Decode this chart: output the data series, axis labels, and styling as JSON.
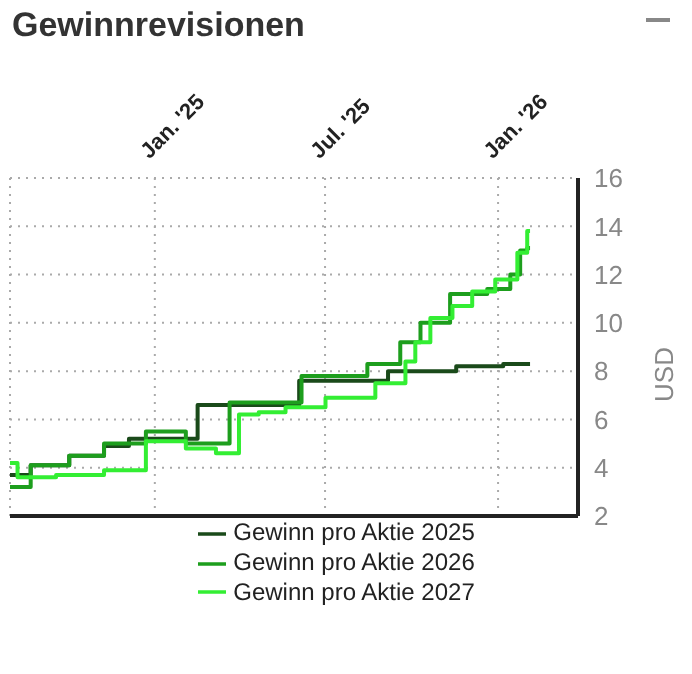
{
  "chart_data": {
    "type": "step",
    "title": "Gewinnrevisionen",
    "ylabel": "USD",
    "xlim": [
      "2024-07-31",
      "2026-03-27"
    ],
    "xticks": [
      {
        "value": "2025-01-01",
        "label": "Jan. '25"
      },
      {
        "value": "2025-07-01",
        "label": "Jul. '25"
      },
      {
        "value": "2026-01-01",
        "label": "Jan. '26"
      }
    ],
    "ylim": [
      2,
      16
    ],
    "yticks": [
      2,
      4,
      6,
      8,
      10,
      12,
      14,
      16
    ],
    "grid": true,
    "legend": "bottom",
    "line_style": "solid",
    "marker": "none",
    "series": [
      {
        "name": "Gewinn pro Aktie 2025",
        "color": "#1a4a1a",
        "x": [
          "2024-07-31",
          "2024-09-13",
          "2024-10-21",
          "2024-11-26",
          "2024-12-13",
          "2025-04-21",
          "2025-07-17",
          "2025-10-27",
          "2025-12-09",
          "2026-02-04"
        ],
        "values": [
          3.7,
          4.1,
          4.5,
          4.9,
          5.2,
          6.6,
          7.6,
          8.0,
          8.2,
          8.3
        ]
      },
      {
        "name": "Gewinn pro Aktie 2026",
        "color": "#1d9e1d",
        "x": [
          "2024-07-31",
          "2024-09-13",
          "2024-10-21",
          "2024-11-26",
          "2025-01-18",
          "2025-02-19",
          "2025-04-21",
          "2025-07-22",
          "2025-09-08",
          "2025-09-30",
          "2025-10-21",
          "2025-12-02",
          "2026-01-08",
          "2026-01-20",
          "2026-01-29",
          "2026-02-04"
        ],
        "values": [
          3.2,
          4.1,
          4.5,
          5.0,
          5.5,
          5.0,
          6.7,
          7.8,
          8.3,
          9.2,
          10.0,
          11.2,
          11.4,
          12.0,
          13.0,
          13.1
        ]
      },
      {
        "name": "Gewinn pro Aktie 2027",
        "color": "#33ee33",
        "x": [
          "2024-07-31",
          "2024-08-16",
          "2024-10-21",
          "2024-11-26",
          "2025-01-18",
          "2025-02-19",
          "2025-03-23",
          "2025-04-09",
          "2025-05-04",
          "2025-06-05",
          "2025-07-28",
          "2025-09-19",
          "2025-09-30",
          "2025-10-10",
          "2025-11-01",
          "2025-11-26",
          "2025-12-13",
          "2026-01-14",
          "2026-01-29",
          "2026-02-04"
        ],
        "values": [
          4.2,
          3.6,
          3.7,
          3.9,
          5.1,
          4.8,
          4.6,
          6.2,
          6.3,
          6.5,
          6.9,
          7.5,
          8.4,
          9.2,
          10.2,
          10.7,
          11.3,
          11.8,
          12.9,
          13.8
        ]
      }
    ]
  }
}
